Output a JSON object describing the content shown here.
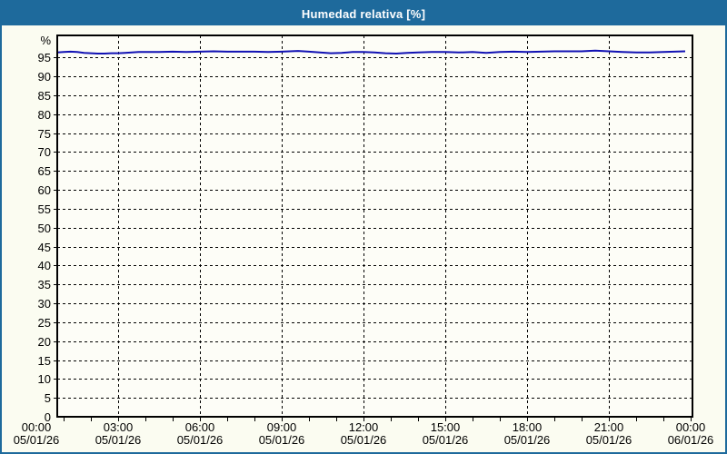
{
  "window": {
    "title": "Humedad relativa [%]"
  },
  "colors": {
    "titlebar_bg": "#1e6a9c",
    "titlebar_text": "#ffffff",
    "page_bg": "#fbfcf1",
    "plot_bg": "#fdfdf7",
    "page_border": "#1e6a9c",
    "grid": "#000000",
    "frame": "#000000",
    "tick_text": "#000000",
    "series_line": "#1212b4"
  },
  "chart_data": {
    "type": "line",
    "title": "Humedad relativa [%]",
    "xlabel": "",
    "ylabel": "%",
    "y_unit_label": "%",
    "ylim": [
      0,
      100.8
    ],
    "y_ticks": [
      0,
      5,
      10,
      15,
      20,
      25,
      30,
      35,
      40,
      45,
      50,
      55,
      60,
      65,
      70,
      75,
      80,
      85,
      90,
      95
    ],
    "grid": "dashed",
    "legend_position": "none",
    "x_axis": {
      "range_hours": [
        0,
        24
      ],
      "major_tick_hours": 3,
      "minor_tick_hours": 1,
      "tick_labels": [
        {
          "time": "00:00",
          "date": "05/01/26"
        },
        {
          "time": "03:00",
          "date": "05/01/26"
        },
        {
          "time": "06:00",
          "date": "05/01/26"
        },
        {
          "time": "09:00",
          "date": "05/01/26"
        },
        {
          "time": "12:00",
          "date": "05/01/26"
        },
        {
          "time": "15:00",
          "date": "05/01/26"
        },
        {
          "time": "18:00",
          "date": "05/01/26"
        },
        {
          "time": "21:00",
          "date": "05/01/26"
        },
        {
          "time": "00:00",
          "date": "06/01/26"
        }
      ]
    },
    "series": [
      {
        "name": "Humedad relativa",
        "color": "#1212b4",
        "x_hours": [
          0.77,
          1.0,
          1.25,
          1.5,
          1.75,
          2.0,
          2.25,
          2.5,
          2.75,
          3.0,
          3.25,
          3.5,
          3.75,
          4.0,
          4.5,
          5.0,
          5.5,
          6.0,
          6.5,
          7.0,
          7.5,
          8.0,
          8.5,
          9.0,
          9.3,
          9.6,
          10.0,
          10.4,
          10.8,
          11.2,
          11.6,
          12.0,
          12.4,
          12.8,
          13.2,
          13.6,
          14.0,
          14.5,
          15.0,
          15.5,
          16.0,
          16.5,
          17.0,
          17.5,
          18.0,
          18.5,
          19.0,
          19.5,
          20.0,
          20.5,
          21.0,
          21.5,
          22.0,
          22.5,
          23.0,
          23.4,
          23.8
        ],
        "values": [
          96.3,
          96.4,
          96.5,
          96.4,
          96.2,
          96.1,
          96.0,
          96.0,
          96.1,
          96.1,
          96.2,
          96.3,
          96.4,
          96.4,
          96.4,
          96.5,
          96.4,
          96.5,
          96.6,
          96.5,
          96.5,
          96.5,
          96.4,
          96.5,
          96.6,
          96.7,
          96.5,
          96.3,
          96.1,
          96.2,
          96.4,
          96.4,
          96.3,
          96.1,
          96.0,
          96.2,
          96.3,
          96.4,
          96.4,
          96.3,
          96.4,
          96.2,
          96.4,
          96.5,
          96.4,
          96.5,
          96.6,
          96.6,
          96.6,
          96.8,
          96.6,
          96.4,
          96.3,
          96.3,
          96.4,
          96.5,
          96.6
        ]
      }
    ]
  }
}
